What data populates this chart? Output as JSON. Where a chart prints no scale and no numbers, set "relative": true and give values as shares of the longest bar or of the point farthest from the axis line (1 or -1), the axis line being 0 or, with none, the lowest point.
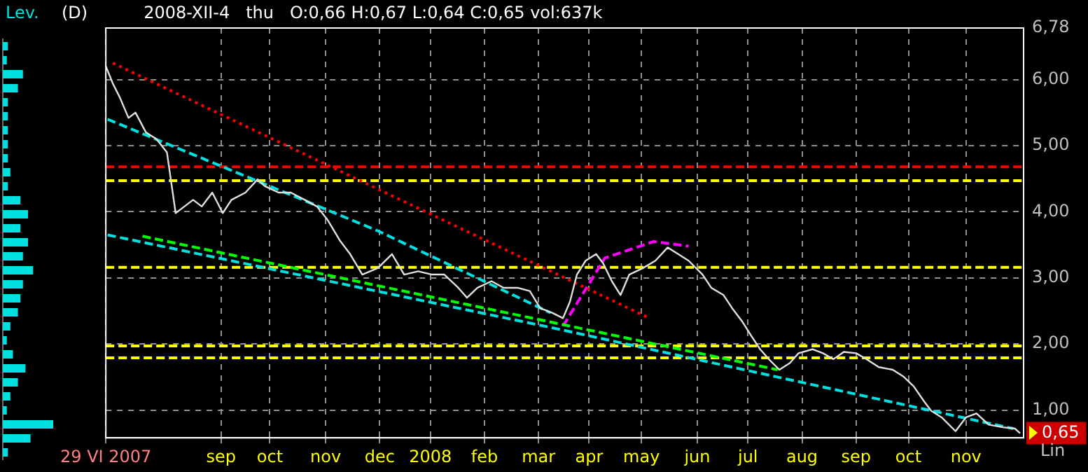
{
  "chart_data": [
    {
      "type": "bar",
      "orientation": "horizontal",
      "relative": true,
      "title": "Lev.",
      "color": "#00e0e0",
      "tick_labels": false,
      "categories": [
        null,
        null,
        null,
        null,
        null,
        null,
        null,
        null,
        null,
        null,
        null,
        null,
        null,
        null,
        null,
        null,
        null,
        null,
        null,
        null,
        null,
        null,
        null,
        null,
        null,
        null,
        null,
        null,
        null,
        null
      ],
      "values": [
        0.1,
        0.08,
        0.4,
        0.3,
        0.1,
        0.1,
        0.1,
        0.1,
        0.1,
        0.15,
        0.1,
        0.35,
        0.5,
        0.35,
        0.5,
        0.4,
        0.6,
        0.4,
        0.35,
        0.3,
        0.15,
        0.08,
        0.2,
        0.45,
        0.3,
        0.15,
        0.08,
        1,
        0.55,
        0.1
      ]
    },
    {
      "type": "line",
      "title": "(D)",
      "subtitle": "2008-XII-4   thu   O:0,66 H:0,67 L:0,64 C:0,65 vol:637k",
      "grid": true,
      "legend": false,
      "marker": "none",
      "xlim": [
        "2007-06-29",
        "2008-12-06"
      ],
      "xticks": [
        {
          "value": "2007-06-29",
          "label": "29 VI 2007"
        },
        {
          "value": "2007-09-03",
          "label": "sep"
        },
        {
          "value": "2007-10-01",
          "label": "oct"
        },
        {
          "value": "2007-11-02",
          "label": "nov"
        },
        {
          "value": "2007-12-03",
          "label": "dec"
        },
        {
          "value": "2008-01-01",
          "label": "2008"
        },
        {
          "value": "2008-02-01",
          "label": "feb"
        },
        {
          "value": "2008-03-03",
          "label": "mar"
        },
        {
          "value": "2008-04-01",
          "label": "apr"
        },
        {
          "value": "2008-05-01",
          "label": "may"
        },
        {
          "value": "2008-06-02",
          "label": "jun"
        },
        {
          "value": "2008-07-01",
          "label": "jul"
        },
        {
          "value": "2008-08-01",
          "label": "aug"
        },
        {
          "value": "2008-09-01",
          "label": "sep"
        },
        {
          "value": "2008-10-01",
          "label": "oct"
        },
        {
          "value": "2008-11-03",
          "label": "nov"
        }
      ],
      "ylim": [
        0.58,
        6.78
      ],
      "yticks": [
        {
          "value": 1,
          "label": "1,00"
        },
        {
          "value": 2,
          "label": "2,00"
        },
        {
          "value": 3,
          "label": "3,00"
        },
        {
          "value": 4,
          "label": "4,00"
        },
        {
          "value": 5,
          "label": "5,00"
        },
        {
          "value": 6,
          "label": "6,00"
        },
        {
          "value": 6.78,
          "label": "6,78"
        }
      ],
      "series": [
        {
          "color": "#e0e0e0",
          "line_style": "solid",
          "x": [
            "2007-06-29",
            "2007-07-03",
            "2007-07-07",
            "2007-07-12",
            "2007-07-16",
            "2007-07-22",
            "2007-07-28",
            "2007-08-03",
            "2007-08-08",
            "2007-08-13",
            "2007-08-18",
            "2007-08-23",
            "2007-08-29",
            "2007-09-04",
            "2007-09-09",
            "2007-09-17",
            "2007-09-24",
            "2007-09-28",
            "2007-10-06",
            "2007-10-13",
            "2007-10-21",
            "2007-10-28",
            "2007-11-03",
            "2007-11-10",
            "2007-11-16",
            "2007-11-23",
            "2007-12-02",
            "2007-12-10",
            "2007-12-17",
            "2007-12-25",
            "2008-01-02",
            "2008-01-09",
            "2008-01-17",
            "2008-01-22",
            "2008-01-28",
            "2008-02-05",
            "2008-02-12",
            "2008-02-20",
            "2008-02-27",
            "2008-03-04",
            "2008-03-11",
            "2008-03-17",
            "2008-03-21",
            "2008-03-25",
            "2008-03-30",
            "2008-04-05",
            "2008-04-09",
            "2008-04-14",
            "2008-04-19",
            "2008-04-24",
            "2008-05-02",
            "2008-05-09",
            "2008-05-16",
            "2008-05-22",
            "2008-05-28",
            "2008-06-05",
            "2008-06-10",
            "2008-06-17",
            "2008-06-22",
            "2008-06-28",
            "2008-07-03",
            "2008-07-08",
            "2008-07-13",
            "2008-07-19",
            "2008-07-25",
            "2008-07-30",
            "2008-08-07",
            "2008-08-13",
            "2008-08-19",
            "2008-08-25",
            "2008-09-01",
            "2008-09-07",
            "2008-09-14",
            "2008-09-22",
            "2008-09-28",
            "2008-10-04",
            "2008-10-10",
            "2008-10-14",
            "2008-10-20",
            "2008-10-28",
            "2008-11-03",
            "2008-11-09",
            "2008-11-16",
            "2008-11-24",
            "2008-12-01",
            "2008-12-04"
          ],
          "values": [
            6.2,
            5.94,
            5.73,
            5.42,
            5.5,
            5.2,
            5.1,
            4.9,
            3.98,
            4.08,
            4.18,
            4.08,
            4.29,
            3.98,
            4.18,
            4.29,
            4.49,
            4.39,
            4.29,
            4.29,
            4.18,
            4.08,
            3.88,
            3.57,
            3.36,
            3.05,
            3.15,
            3.36,
            3.05,
            3.1,
            3.05,
            3.05,
            2.85,
            2.7,
            2.85,
            2.95,
            2.85,
            2.85,
            2.8,
            2.54,
            2.47,
            2.39,
            2.64,
            3.05,
            3.26,
            3.36,
            3.22,
            2.95,
            2.74,
            3.05,
            3.15,
            3.26,
            3.46,
            3.36,
            3.26,
            3.05,
            2.85,
            2.74,
            2.54,
            2.33,
            2.12,
            1.92,
            1.77,
            1.61,
            1.71,
            1.86,
            1.92,
            1.86,
            1.77,
            1.88,
            1.86,
            1.77,
            1.65,
            1.61,
            1.51,
            1.36,
            1.13,
            0.99,
            0.89,
            0.68,
            0.89,
            0.95,
            0.78,
            0.74,
            0.72,
            0.65
          ]
        },
        {
          "color": "#ff0000",
          "line_style": "dotted",
          "x": [
            "2007-07-03",
            "2008-05-04"
          ],
          "values": [
            6.25,
            2.41
          ]
        },
        {
          "color": "#00e0e0",
          "line_style": "dashed",
          "x": [
            "2007-06-30",
            "2007-12-02",
            "2008-03-10"
          ],
          "values": [
            5.4,
            3.71,
            2.47
          ]
        },
        {
          "color": "#00e0e0",
          "line_style": "dashed",
          "x": [
            "2007-06-30",
            "2008-03-10",
            "2008-11-30"
          ],
          "values": [
            3.65,
            2.25,
            0.72
          ]
        },
        {
          "color": "#00ff00",
          "line_style": "dashed",
          "x": [
            "2007-07-20",
            "2008-07-18"
          ],
          "values": [
            3.63,
            1.61
          ]
        },
        {
          "color": "#ff00ff",
          "line_style": "dashed",
          "x": [
            "2008-03-17",
            "2008-04-10",
            "2008-05-08",
            "2008-05-28"
          ],
          "values": [
            2.27,
            3.3,
            3.55,
            3.48
          ]
        }
      ],
      "ref_lines": [
        {
          "axis": "y",
          "value": 4.68,
          "color": "#ff0000",
          "line_style": "dashed"
        },
        {
          "axis": "y",
          "value": 4.47,
          "color": "#ffff00",
          "line_style": "dashed"
        },
        {
          "axis": "y",
          "value": 3.16,
          "color": "#ffff00",
          "line_style": "dashed"
        },
        {
          "axis": "y",
          "value": 1.97,
          "color": "#ffff00",
          "line_style": "dashed"
        },
        {
          "axis": "y",
          "value": 1.79,
          "color": "#ffff00",
          "line_style": "dashed"
        }
      ],
      "annotations": [
        "0,65",
        "Lin"
      ]
    }
  ]
}
